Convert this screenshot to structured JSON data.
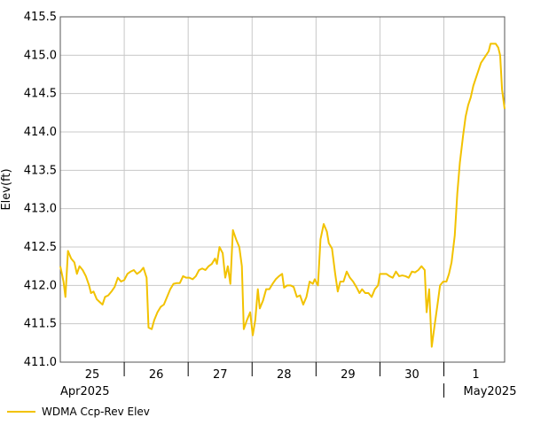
{
  "chart_data": {
    "type": "line",
    "ylabel": "Elev(ft)",
    "ylim": [
      411.0,
      415.5
    ],
    "yticks": [
      "411.0",
      "411.5",
      "412.0",
      "412.5",
      "413.0",
      "413.5",
      "414.0",
      "414.5",
      "415.0",
      "415.5"
    ],
    "ytick_values": [
      411.0,
      411.5,
      412.0,
      412.5,
      413.0,
      413.5,
      414.0,
      414.5,
      415.0,
      415.5
    ],
    "xlim": [
      24.5,
      31.45
    ],
    "day_labels": [
      {
        "x": 25,
        "label": "25"
      },
      {
        "x": 26,
        "label": "26"
      },
      {
        "x": 27,
        "label": "27"
      },
      {
        "x": 28,
        "label": "28"
      },
      {
        "x": 29,
        "label": "29"
      },
      {
        "x": 30,
        "label": "30"
      },
      {
        "x": 31,
        "label": "1"
      }
    ],
    "day_boundaries": [
      24.5,
      25.5,
      26.5,
      27.5,
      28.5,
      29.5,
      30.5
    ],
    "month_labels": [
      {
        "x": 24.5,
        "label": "Apr2025"
      },
      {
        "x": 30.5,
        "label": "May2025"
      }
    ],
    "grid": true,
    "legend_position": "bottom-left",
    "series": [
      {
        "name": "WDMA Ccp-Rev Elev",
        "color": "#f2c200",
        "points": [
          [
            24.5,
            412.25
          ],
          [
            24.55,
            412.05
          ],
          [
            24.58,
            411.85
          ],
          [
            24.62,
            412.45
          ],
          [
            24.67,
            412.35
          ],
          [
            24.72,
            412.3
          ],
          [
            24.76,
            412.15
          ],
          [
            24.8,
            412.25
          ],
          [
            24.85,
            412.2
          ],
          [
            24.9,
            412.12
          ],
          [
            24.95,
            412.0
          ],
          [
            24.98,
            411.9
          ],
          [
            25.02,
            411.92
          ],
          [
            25.07,
            411.82
          ],
          [
            25.12,
            411.78
          ],
          [
            25.16,
            411.75
          ],
          [
            25.2,
            411.85
          ],
          [
            25.25,
            411.87
          ],
          [
            25.3,
            411.92
          ],
          [
            25.35,
            411.98
          ],
          [
            25.4,
            412.1
          ],
          [
            25.45,
            412.05
          ],
          [
            25.5,
            412.07
          ],
          [
            25.55,
            412.15
          ],
          [
            25.6,
            412.18
          ],
          [
            25.65,
            412.2
          ],
          [
            25.7,
            412.15
          ],
          [
            25.75,
            412.18
          ],
          [
            25.8,
            412.23
          ],
          [
            25.85,
            412.1
          ],
          [
            25.88,
            411.45
          ],
          [
            25.93,
            411.43
          ],
          [
            25.97,
            411.55
          ],
          [
            26.02,
            411.65
          ],
          [
            26.07,
            411.72
          ],
          [
            26.12,
            411.75
          ],
          [
            26.17,
            411.85
          ],
          [
            26.22,
            411.95
          ],
          [
            26.27,
            412.02
          ],
          [
            26.32,
            412.03
          ],
          [
            26.37,
            412.03
          ],
          [
            26.42,
            412.12
          ],
          [
            26.47,
            412.1
          ],
          [
            26.52,
            412.1
          ],
          [
            26.57,
            412.08
          ],
          [
            26.62,
            412.12
          ],
          [
            26.67,
            412.2
          ],
          [
            26.72,
            412.22
          ],
          [
            26.77,
            412.2
          ],
          [
            26.82,
            412.25
          ],
          [
            26.87,
            412.28
          ],
          [
            26.92,
            412.35
          ],
          [
            26.95,
            412.28
          ],
          [
            26.99,
            412.5
          ],
          [
            27.04,
            412.42
          ],
          [
            27.08,
            412.1
          ],
          [
            27.12,
            412.25
          ],
          [
            27.16,
            412.02
          ],
          [
            27.2,
            412.72
          ],
          [
            27.25,
            412.6
          ],
          [
            27.3,
            412.5
          ],
          [
            27.34,
            412.25
          ],
          [
            27.37,
            411.43
          ],
          [
            27.42,
            411.55
          ],
          [
            27.47,
            411.65
          ],
          [
            27.51,
            411.35
          ],
          [
            27.55,
            411.55
          ],
          [
            27.59,
            411.95
          ],
          [
            27.62,
            411.7
          ],
          [
            27.67,
            411.8
          ],
          [
            27.72,
            411.95
          ],
          [
            27.77,
            411.95
          ],
          [
            27.82,
            412.02
          ],
          [
            27.87,
            412.08
          ],
          [
            27.92,
            412.12
          ],
          [
            27.97,
            412.15
          ],
          [
            28.0,
            411.97
          ],
          [
            28.05,
            412.0
          ],
          [
            28.1,
            412.0
          ],
          [
            28.15,
            411.98
          ],
          [
            28.2,
            411.85
          ],
          [
            28.25,
            411.87
          ],
          [
            28.3,
            411.75
          ],
          [
            28.35,
            411.85
          ],
          [
            28.4,
            412.05
          ],
          [
            28.45,
            412.02
          ],
          [
            28.48,
            412.08
          ],
          [
            28.53,
            412.0
          ],
          [
            28.57,
            412.6
          ],
          [
            28.62,
            412.8
          ],
          [
            28.67,
            412.7
          ],
          [
            28.7,
            412.55
          ],
          [
            28.75,
            412.48
          ],
          [
            28.8,
            412.15
          ],
          [
            28.84,
            411.92
          ],
          [
            28.88,
            412.05
          ],
          [
            28.93,
            412.05
          ],
          [
            28.98,
            412.18
          ],
          [
            29.03,
            412.1
          ],
          [
            29.08,
            412.05
          ],
          [
            29.13,
            411.98
          ],
          [
            29.18,
            411.9
          ],
          [
            29.22,
            411.95
          ],
          [
            29.27,
            411.9
          ],
          [
            29.32,
            411.9
          ],
          [
            29.37,
            411.85
          ],
          [
            29.42,
            411.95
          ],
          [
            29.47,
            412.0
          ],
          [
            29.5,
            412.15
          ],
          [
            29.55,
            412.15
          ],
          [
            29.6,
            412.15
          ],
          [
            29.65,
            412.12
          ],
          [
            29.7,
            412.1
          ],
          [
            29.75,
            412.18
          ],
          [
            29.8,
            412.12
          ],
          [
            29.85,
            412.13
          ],
          [
            29.9,
            412.12
          ],
          [
            29.95,
            412.1
          ],
          [
            30.0,
            412.18
          ],
          [
            30.05,
            412.17
          ],
          [
            30.1,
            412.2
          ],
          [
            30.15,
            412.25
          ],
          [
            30.2,
            412.2
          ],
          [
            30.23,
            411.65
          ],
          [
            30.27,
            411.95
          ],
          [
            30.31,
            411.2
          ],
          [
            30.35,
            411.45
          ],
          [
            30.4,
            411.75
          ],
          [
            30.44,
            412.0
          ],
          [
            30.49,
            412.05
          ],
          [
            30.54,
            412.05
          ],
          [
            30.58,
            412.15
          ],
          [
            30.62,
            412.3
          ],
          [
            30.67,
            412.65
          ],
          [
            30.71,
            413.2
          ],
          [
            30.75,
            413.6
          ],
          [
            30.8,
            413.95
          ],
          [
            30.84,
            414.2
          ],
          [
            30.88,
            414.35
          ],
          [
            30.92,
            414.45
          ],
          [
            30.96,
            414.6
          ],
          [
            31.0,
            414.7
          ],
          [
            31.04,
            414.8
          ],
          [
            31.08,
            414.9
          ],
          [
            31.12,
            414.95
          ],
          [
            31.16,
            415.0
          ],
          [
            31.2,
            415.05
          ],
          [
            31.23,
            415.15
          ],
          [
            31.27,
            415.15
          ],
          [
            31.31,
            415.15
          ],
          [
            31.35,
            415.1
          ],
          [
            31.38,
            415.0
          ],
          [
            31.41,
            414.55
          ],
          [
            31.45,
            414.3
          ]
        ]
      }
    ]
  }
}
